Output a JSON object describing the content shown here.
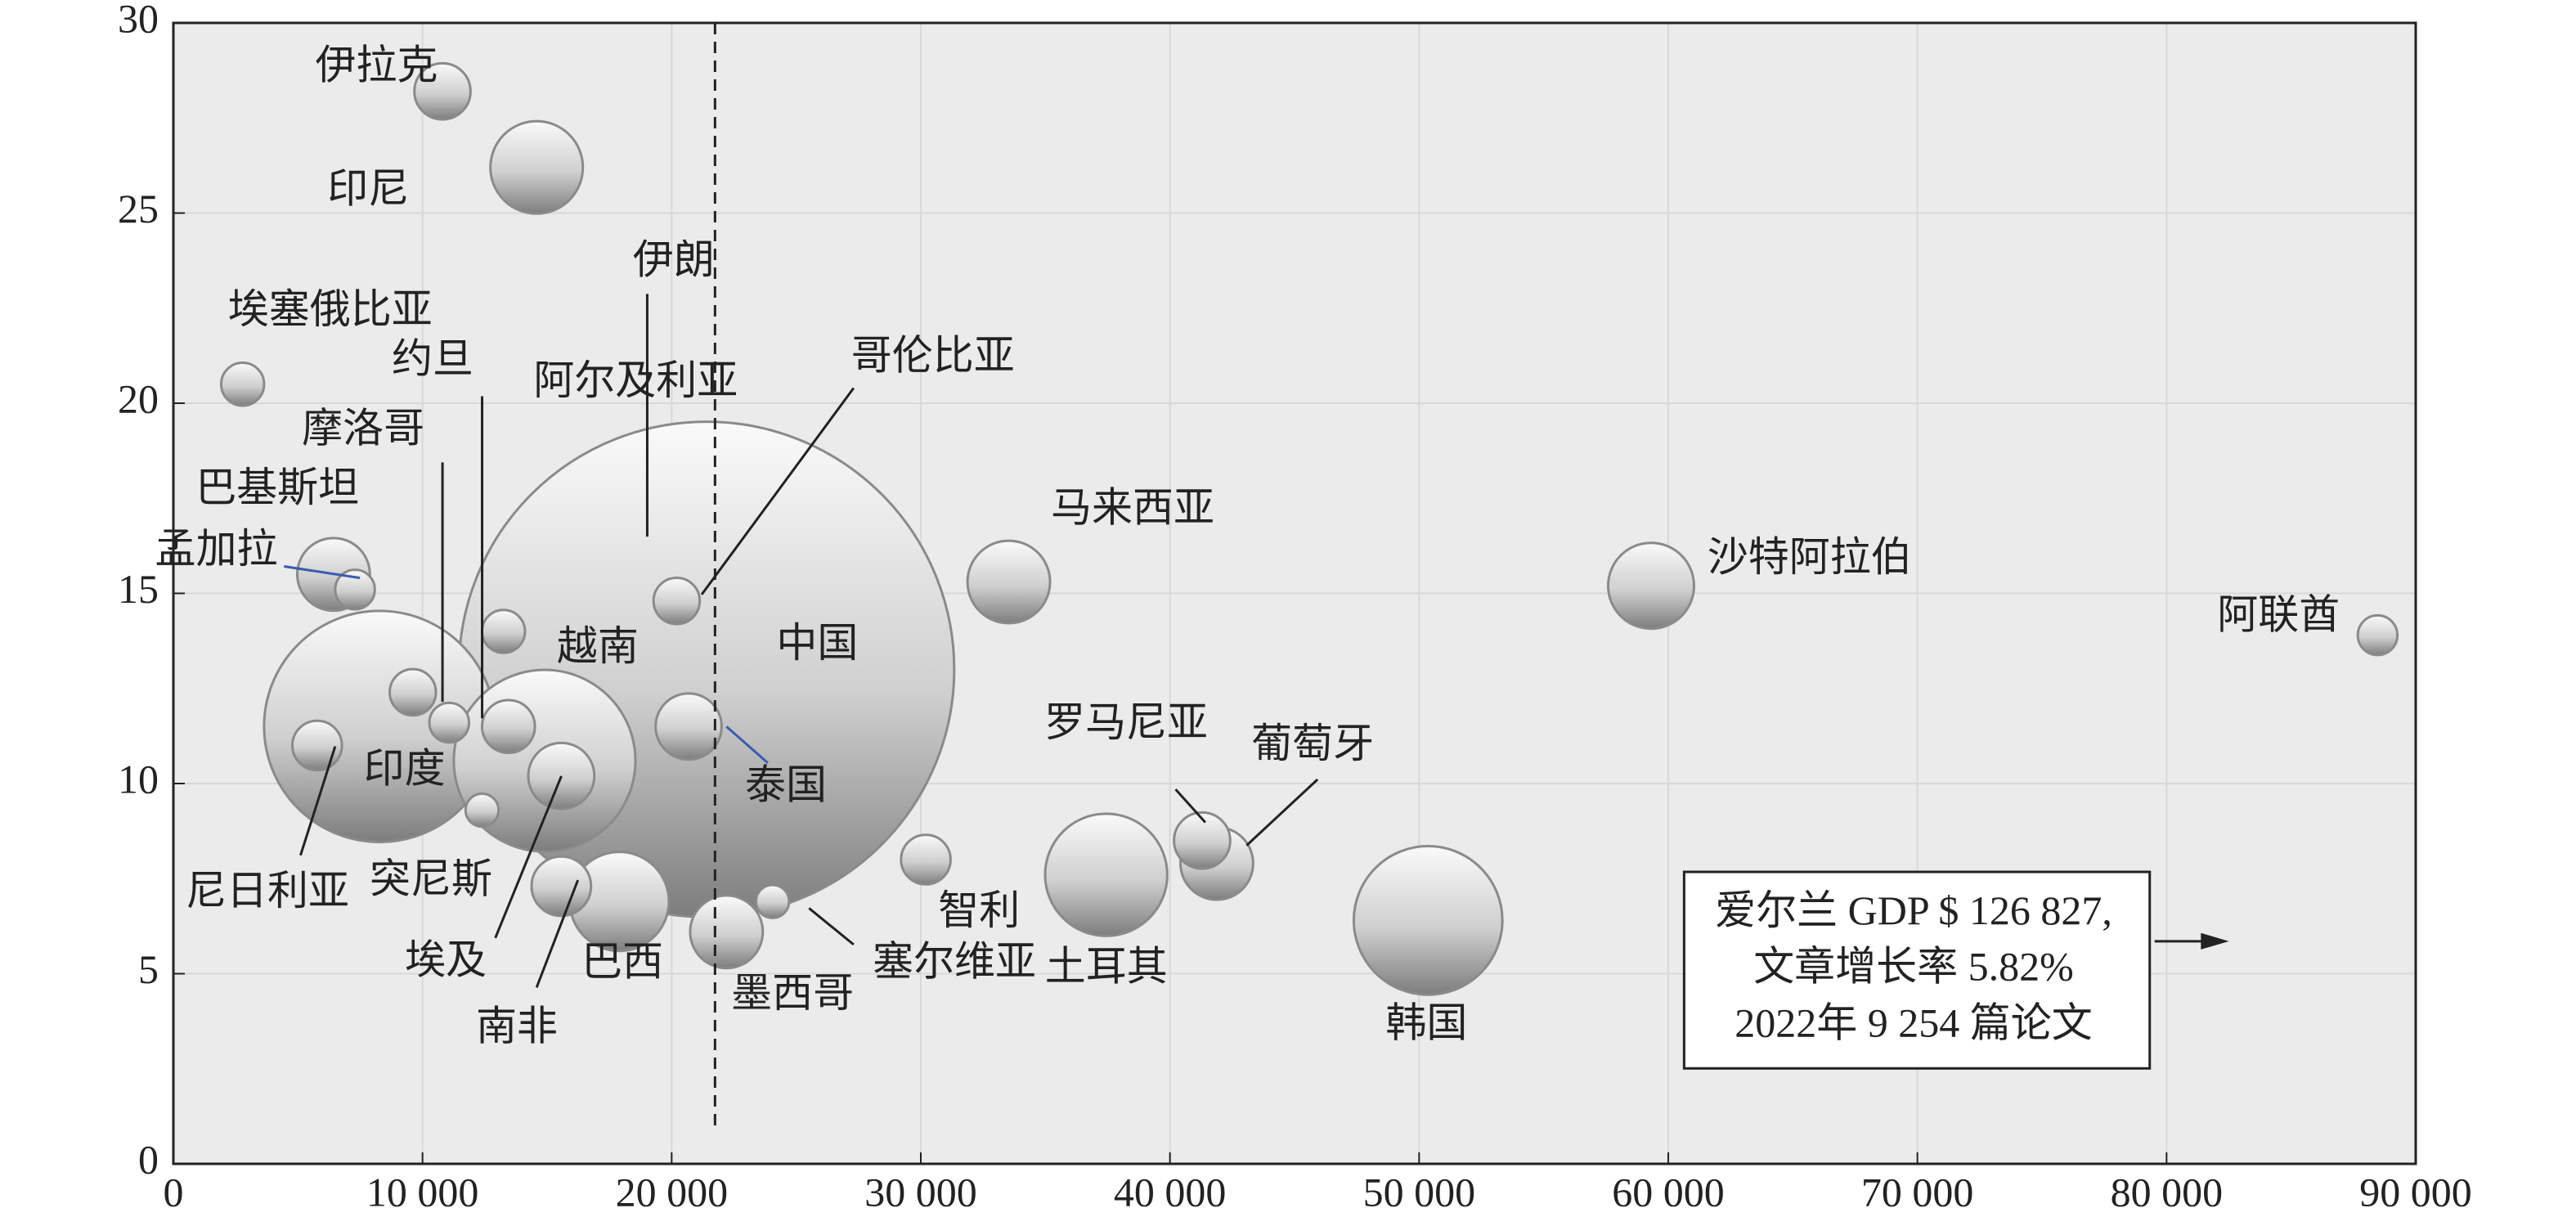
{
  "chart_data": {
    "type": "bubble",
    "labels": [
      "伊拉克",
      "印尼",
      "埃塞俄比亚",
      "约旦",
      "摩洛哥",
      "巴基斯坦",
      "孟加拉",
      "伊朗",
      "阿尔及利亚",
      "哥伦比亚",
      "马来西亚",
      "沙特阿拉伯",
      "阿联酋",
      "越南",
      "中国",
      "印度",
      "泰国",
      "尼日利亚",
      "突尼斯",
      "埃及",
      "南非",
      "巴西",
      "墨西哥",
      "塞尔维亚",
      "智利",
      "土耳其",
      "罗马尼亚",
      "葡萄牙",
      "韩国"
    ],
    "x": [
      10800,
      14580,
      2780,
      11070,
      9610,
      6430,
      7290,
      13450,
      13250,
      20200,
      33530,
      59310,
      88470,
      14900,
      21400,
      8280,
      20680,
      5770,
      12390,
      15570,
      15570,
      17900,
      22200,
      24050,
      30200,
      37440,
      41290,
      41880,
      50360
    ],
    "values": [
      28.2,
      26.2,
      20.5,
      11.6,
      12.4,
      15.5,
      15.1,
      11.5,
      14.0,
      14.8,
      15.3,
      15.2,
      13.9,
      10.6,
      13.0,
      11.5,
      11.5,
      11.0,
      9.3,
      10.2,
      7.3,
      6.9,
      6.1,
      6.9,
      8.0,
      7.6,
      8.5,
      7.9,
      6.4
    ],
    "sizes": [
      289,
      784,
      169,
      144,
      196,
      484,
      144,
      256,
      169,
      196,
      625,
      676,
      144,
      3025,
      22500,
      4900,
      400,
      225,
      100,
      400,
      324,
      900,
      484,
      100,
      225,
      1369,
      289,
      484,
      2025
    ],
    "reference_x": 21740,
    "annotation": [
      "爱尔兰 GDP $ 126 827,",
      "文章增长率 5.82%",
      "2022年 9 254 篇论文"
    ],
    "xlim": [
      0,
      90000
    ],
    "xticks": [
      0,
      {
        "value": 10000,
        "label": "10 000"
      },
      {
        "value": 20000,
        "label": "20 000"
      },
      {
        "value": 30000,
        "label": "30 000"
      },
      {
        "value": 40000,
        "label": "40 000"
      },
      {
        "value": 50000,
        "label": "50 000"
      },
      {
        "value": 60000,
        "label": "60 000"
      },
      {
        "value": 70000,
        "label": "70 000"
      },
      {
        "value": 80000,
        "label": "80 000"
      },
      {
        "value": 90000,
        "label": "90 000"
      }
    ],
    "ylim": [
      0,
      30
    ],
    "yticks": [
      0,
      5,
      10,
      15,
      20,
      25,
      30
    ],
    "grid": true
  }
}
